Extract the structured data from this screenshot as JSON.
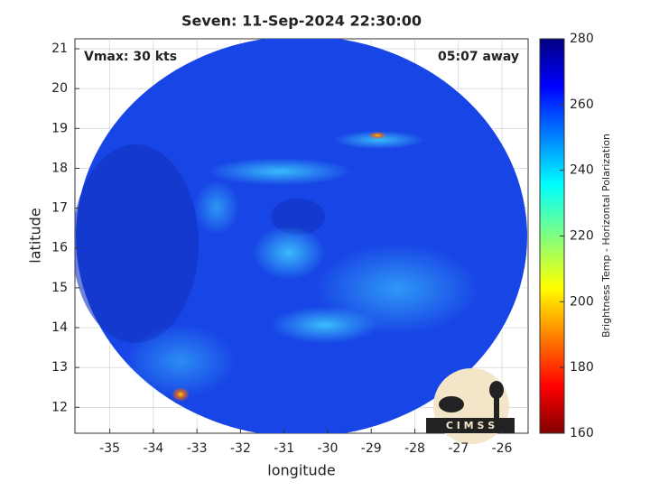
{
  "chart_data": {
    "type": "image",
    "title": "Seven: 11-Sep-2024 22:30:00",
    "annotations": [
      "Vmax: 30 kts",
      "05:07 away"
    ],
    "xlabel": "longitude",
    "ylabel": "latitude",
    "xlim": [
      -35.8,
      -25.4
    ],
    "ylim": [
      11.35,
      21.25
    ],
    "xticks": [
      -35,
      -34,
      -33,
      -32,
      -31,
      -30,
      -29,
      -28,
      -27,
      -26
    ],
    "yticks": [
      12,
      13,
      14,
      15,
      16,
      17,
      18,
      19,
      20,
      21
    ],
    "grid": true,
    "colorbar": {
      "label": "Brightness Temp - Horizontal Polarization",
      "clim": [
        160,
        280
      ],
      "ticks": [
        160,
        180,
        200,
        220,
        240,
        260,
        280
      ]
    },
    "logo": "C I M S S"
  }
}
